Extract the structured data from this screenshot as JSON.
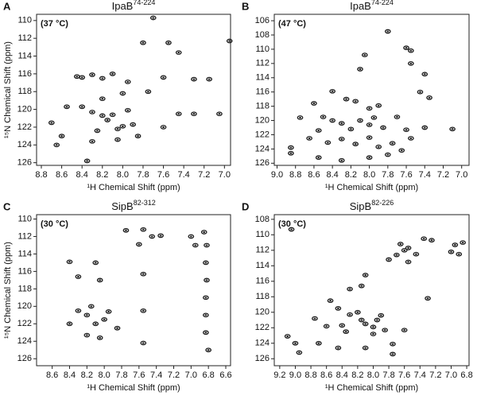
{
  "chart_data": [
    {
      "type": "scatter",
      "panel_label": "A",
      "title": "IpaB",
      "title_superscript": "74-224",
      "annotation": "(37 °C)",
      "xlabel": "¹H Chemical Shift (ppm)",
      "ylabel": "¹⁵N Chemical Shift (ppm)",
      "color": "#1a1a1a",
      "xlim": [
        8.847,
        6.94
      ],
      "ylim": [
        109.3,
        126.3
      ],
      "xticks": [
        8.8,
        8.6,
        8.4,
        8.2,
        {
          "value": 8,
          "label": "8.0"
        },
        7.8,
        7.6,
        7.4,
        7.2,
        {
          "value": 7,
          "label": "7.0"
        }
      ],
      "yticks": [
        110,
        112,
        114,
        116,
        118,
        120,
        122,
        124,
        126
      ],
      "x": [
        8.45,
        8.4,
        8.3,
        8.2,
        8.1,
        7.95,
        7.6,
        7.45,
        8.55,
        8.4,
        8.3,
        8.2,
        8.1,
        8.15,
        8.0,
        8.05,
        7.95,
        7.9,
        7.85,
        7.6,
        7.45,
        7.3,
        7.05,
        8.25,
        8.3,
        8.05,
        8.6,
        8.7,
        8.65,
        7.8,
        7.55,
        6.95,
        8.35,
        7.7,
        8.0,
        7.75,
        8.2,
        7.3,
        7.15
      ],
      "values": [
        116.3,
        116.4,
        116.1,
        116.5,
        116,
        116.9,
        116.4,
        113.6,
        119.7,
        119.7,
        120.3,
        120.7,
        120.6,
        121.2,
        121.9,
        122.2,
        120.1,
        121.7,
        123,
        122,
        120.5,
        120.5,
        120.5,
        122.4,
        123.6,
        123.4,
        123,
        121.5,
        124,
        112.5,
        112.5,
        112.3,
        125.8,
        109.7,
        118.2,
        118,
        118.8,
        116.6,
        116.6
      ]
    },
    {
      "type": "scatter",
      "panel_label": "B",
      "title": "IpaB",
      "title_superscript": "74-224",
      "annotation": "(47 °C)",
      "xlabel": "¹H Chemical Shift (ppm)",
      "color": "#1a1a1a",
      "xlim": [
        9.03,
        6.92
      ],
      "ylim": [
        105.1,
        126.3
      ],
      "xticks": [
        {
          "value": 9,
          "label": "9.0"
        },
        8.8,
        8.6,
        8.4,
        8.2,
        {
          "value": 8,
          "label": "8.0"
        },
        7.8,
        7.6,
        7.4,
        7.2,
        {
          "value": 7,
          "label": "7.0"
        }
      ],
      "yticks": [
        106,
        108,
        110,
        112,
        114,
        116,
        118,
        120,
        122,
        124,
        126
      ],
      "x": [
        7.8,
        7.6,
        7.55,
        7.55,
        7.4,
        8.05,
        8.1,
        7.45,
        7.35,
        8.4,
        8.25,
        8.15,
        8.6,
        8.0,
        7.9,
        8.75,
        8.5,
        8.4,
        8.3,
        8.2,
        8.1,
        8.0,
        7.95,
        7.85,
        7.7,
        7.6,
        7.55,
        7.4,
        7.1,
        8.55,
        8.65,
        8.45,
        8.3,
        8.15,
        8.0,
        7.9,
        7.75,
        7.65,
        8.85,
        8.85,
        8.55,
        8.3,
        8.0,
        7.8
      ],
      "values": [
        107.5,
        109.8,
        110.2,
        112,
        113.5,
        110.8,
        112.8,
        116,
        116.8,
        115.9,
        117,
        117.3,
        117.6,
        118.3,
        117.9,
        119.6,
        119.5,
        120,
        120.4,
        121.2,
        120,
        120.6,
        119.6,
        121,
        119.5,
        121.3,
        122.5,
        121,
        121.2,
        121.4,
        122.5,
        123.1,
        122.6,
        123.3,
        122.4,
        123.7,
        123.2,
        124.2,
        123.8,
        124.6,
        125.2,
        125.6,
        125.2,
        124.8
      ]
    },
    {
      "type": "scatter",
      "panel_label": "C",
      "title": "SipB",
      "title_superscript": "82-312",
      "annotation": "(30 °C)",
      "xlabel": "¹H Chemical Shift (ppm)",
      "ylabel": "¹⁵N Chemical Shift (ppm)",
      "color": "#1a1a1a",
      "xlim": [
        8.78,
        6.545
      ],
      "ylim": [
        109.5,
        126.8
      ],
      "xticks": [
        8.6,
        8.4,
        8.2,
        {
          "value": 8,
          "label": "8.0"
        },
        7.8,
        7.6,
        7.4,
        7.2,
        {
          "value": 7,
          "label": "7.0"
        },
        6.8,
        6.6
      ],
      "yticks": [
        110,
        112,
        114,
        116,
        118,
        120,
        122,
        124,
        126
      ],
      "x": [
        7.55,
        7.45,
        7.35,
        7.6,
        7.0,
        6.95,
        6.85,
        6.82,
        6.83,
        6.82,
        6.83,
        6.83,
        6.83,
        6.8,
        7.75,
        7.55,
        8.3,
        8.4,
        8.1,
        8.05,
        8.3,
        8.2,
        8.1,
        8.0,
        7.95,
        8.15,
        8.4,
        8.2,
        8.05,
        7.55,
        7.55,
        7.85
      ],
      "values": [
        111.2,
        112,
        111.9,
        112.9,
        112,
        113,
        111.5,
        113,
        115,
        117,
        119,
        121,
        123,
        125,
        111.3,
        116.3,
        116.6,
        114.9,
        115,
        117,
        120.5,
        121,
        122,
        121.5,
        120.6,
        120,
        122,
        123.3,
        123.6,
        124.2,
        120.5,
        122.5
      ]
    },
    {
      "type": "scatter",
      "panel_label": "D",
      "title": "SipB",
      "title_superscript": "82-226",
      "annotation": "(30 °C)",
      "xlabel": "¹H Chemical Shift (ppm)",
      "color": "#1a1a1a",
      "xlim": [
        9.27,
        6.77
      ],
      "ylim": [
        107.4,
        126.9
      ],
      "xticks": [
        9.2,
        {
          "value": 9,
          "label": "9.0"
        },
        8.8,
        8.6,
        8.4,
        8.2,
        {
          "value": 8,
          "label": "8.0"
        },
        7.8,
        7.6,
        7.4,
        7.2,
        {
          "value": 7,
          "label": "7.0"
        },
        6.8
      ],
      "yticks": [
        108,
        110,
        112,
        114,
        116,
        118,
        120,
        122,
        124,
        126
      ],
      "x": [
        9.05,
        7.65,
        7.6,
        7.55,
        7.7,
        7.45,
        7.35,
        7.25,
        7.0,
        6.95,
        6.9,
        6.85,
        7.8,
        7.55,
        8.1,
        8.15,
        8.3,
        8.55,
        8.45,
        8.3,
        8.2,
        8.15,
        8.1,
        8.0,
        7.95,
        7.9,
        7.85,
        8.0,
        8.4,
        8.6,
        8.75,
        9.1,
        9.0,
        8.7,
        8.45,
        8.35,
        7.75,
        7.75,
        8.1,
        7.6,
        7.3,
        8.95
      ],
      "values": [
        109.3,
        111.2,
        112,
        111.7,
        112.6,
        112.5,
        110.5,
        110.7,
        112.2,
        111.3,
        112.5,
        111,
        113.2,
        113.5,
        115.2,
        116.6,
        117,
        118.5,
        119.5,
        120.3,
        120,
        121,
        121.5,
        121.9,
        121,
        120.4,
        122.3,
        122.8,
        121.7,
        121.8,
        120.8,
        123.1,
        124,
        124,
        124.6,
        122.5,
        124.1,
        125.4,
        124.6,
        122.3,
        118.2,
        125.2
      ]
    }
  ]
}
